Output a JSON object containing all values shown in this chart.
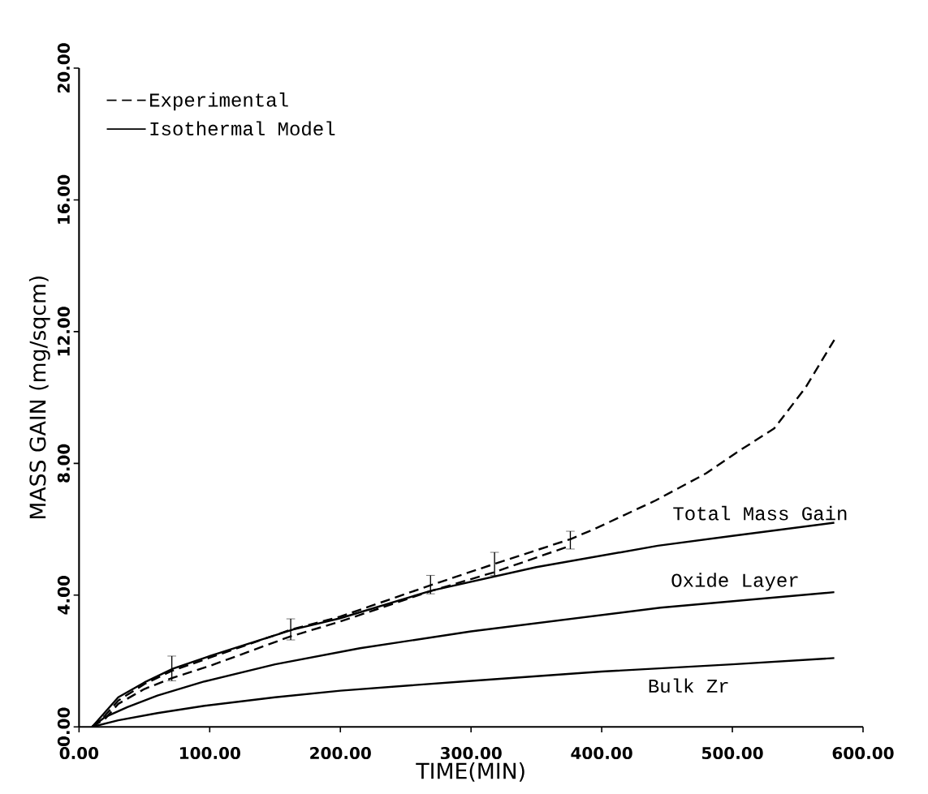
{
  "chart_data": {
    "type": "line",
    "xlabel": "TIME(MIN)",
    "ylabel": "MASS GAIN (mg/sqcm)",
    "xlim": [
      0,
      600
    ],
    "ylim": [
      0,
      20
    ],
    "xticks": [
      {
        "value": 0,
        "label": "0.00"
      },
      {
        "value": 100,
        "label": "100.00"
      },
      {
        "value": 200,
        "label": "200.00"
      },
      {
        "value": 300,
        "label": "300.00"
      },
      {
        "value": 400,
        "label": "400.00"
      },
      {
        "value": 500,
        "label": "500.00"
      },
      {
        "value": 600,
        "label": "600.00"
      }
    ],
    "yticks": [
      {
        "value": 0,
        "label": "0.00"
      },
      {
        "value": 4,
        "label": "4.00"
      },
      {
        "value": 8,
        "label": "8.00"
      },
      {
        "value": 12,
        "label": "12.00"
      },
      {
        "value": 16,
        "label": "16.00"
      },
      {
        "value": 20,
        "label": "20.00"
      }
    ],
    "legend": "top left",
    "grid": false,
    "marker": "none",
    "series": [
      {
        "name": "Experimental",
        "color": "#000000",
        "line_style": "dashed",
        "x": [
          10,
          20,
          30,
          50,
          71,
          100,
          162,
          200,
          269,
          318,
          376,
          394,
          441,
          480,
          504,
          532,
          556,
          578
        ],
        "values": [
          0,
          0.35,
          0.8,
          1.3,
          1.7,
          2.1,
          2.95,
          3.35,
          4.3,
          4.95,
          5.7,
          6.0,
          6.87,
          7.7,
          8.35,
          9.06,
          10.3,
          11.75
        ],
        "errors": [
          null,
          null,
          null,
          null,
          [
            1.4,
            2.15
          ],
          null,
          [
            2.64,
            3.28
          ],
          null,
          [
            4.04,
            4.6
          ],
          [
            4.6,
            5.3
          ],
          [
            5.4,
            5.94
          ],
          null,
          null,
          null,
          null,
          null,
          null,
          null
        ]
      },
      {
        "color": "#000000",
        "line_style": "dashed",
        "x": [
          10,
          20,
          30,
          50,
          71,
          100,
          162,
          200,
          269,
          318,
          376
        ],
        "values": [
          0,
          0.25,
          0.7,
          1.15,
          1.48,
          1.85,
          2.75,
          3.2,
          4.12,
          4.7,
          5.5
        ]
      },
      {
        "name": "Isothermal Model",
        "color": "#000000",
        "line_style": "solid",
        "x": [
          10,
          20,
          30,
          50,
          72,
          100,
          164,
          200,
          270,
          350,
          443,
          500,
          578
        ],
        "values": [
          0,
          0.45,
          0.9,
          1.35,
          1.77,
          2.15,
          2.96,
          3.3,
          4.14,
          4.85,
          5.5,
          5.8,
          6.2
        ]
      },
      {
        "color": "#000000",
        "line_style": "solid",
        "x": [
          10,
          20,
          37,
          60,
          96,
          150,
          215,
          300,
          445,
          578
        ],
        "values": [
          0,
          0.3,
          0.6,
          0.95,
          1.38,
          1.9,
          2.39,
          2.9,
          3.62,
          4.09
        ]
      },
      {
        "color": "#000000",
        "line_style": "solid",
        "x": [
          10,
          30,
          60,
          96,
          150,
          200,
          294,
          400,
          500,
          578
        ],
        "values": [
          0,
          0.2,
          0.42,
          0.64,
          0.9,
          1.1,
          1.38,
          1.68,
          1.9,
          2.09
        ]
      }
    ],
    "annotations": [
      {
        "text": "Total Mass Gain",
        "x": 443,
        "y": 5.5
      },
      {
        "text": "Oxide Layer",
        "x": 445,
        "y": 3.62
      },
      {
        "text": "Bulk Zr",
        "x": 429,
        "y": 1.72
      }
    ]
  }
}
